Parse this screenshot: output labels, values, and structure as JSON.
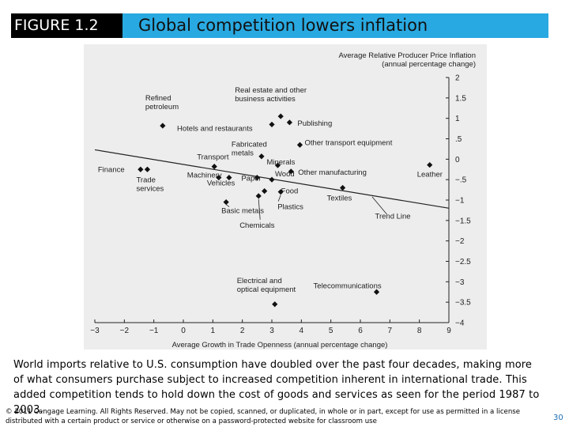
{
  "figure": {
    "label": "FIGURE 1.2",
    "title": "Global competition lowers inflation"
  },
  "chart_data": {
    "type": "scatter",
    "ylabel_lines": [
      "Average Relative Producer Price Inflation",
      "(annual percentage change)"
    ],
    "xlabel": "Average Growth in Trade Openness (annual percentage change)",
    "xlim": [
      -3,
      9
    ],
    "ylim": [
      -4,
      2
    ],
    "x_ticks": [
      "−3",
      "−2",
      "−1",
      "0",
      "1",
      "2",
      "3",
      "4",
      "5",
      "6",
      "7",
      "8",
      "9"
    ],
    "y_ticks": [
      "2",
      "1.5",
      "1",
      ".5",
      "0",
      "−.5",
      "−1",
      "−1.5",
      "−2",
      "−2.5",
      "−3",
      "−3.5",
      "−4"
    ],
    "trend_line": {
      "label": "Trend Line",
      "x": [
        -3,
        9
      ],
      "y": [
        0.23,
        -1.2
      ]
    },
    "points": [
      {
        "name": "Refined petroleum",
        "lines": [
          "Refined",
          "petroleum"
        ],
        "x": -0.7,
        "y": 0.82
      },
      {
        "name": "Hotels and restaurants",
        "lines": [
          "Hotels and restaurants"
        ],
        "x": 3.0,
        "y": 0.85
      },
      {
        "name": "Real estate and other business activities",
        "lines": [
          "Real estate and other",
          "business activities"
        ],
        "x": 3.3,
        "y": 1.05
      },
      {
        "name": "Publishing",
        "lines": [
          "Publishing"
        ],
        "x": 3.6,
        "y": 0.9
      },
      {
        "name": "Other transport equipment",
        "lines": [
          "Other transport equipment"
        ],
        "x": 3.95,
        "y": 0.35
      },
      {
        "name": "Fabricated metals",
        "lines": [
          "Fabricated",
          "metals"
        ],
        "x": 2.65,
        "y": 0.07
      },
      {
        "name": "Minerals",
        "lines": [
          "Minerals"
        ],
        "x": 3.2,
        "y": -0.15
      },
      {
        "name": "Transport",
        "lines": [
          "Transport"
        ],
        "x": 1.05,
        "y": -0.18
      },
      {
        "name": "Finance",
        "lines": [
          "Finance"
        ],
        "x": -1.45,
        "y": -0.25
      },
      {
        "name": "Trade services",
        "lines": [
          "Trade",
          "services"
        ],
        "x": -1.22,
        "y": -0.25
      },
      {
        "name": "Other manufacturing",
        "lines": [
          "Other manufacturing"
        ],
        "x": 3.65,
        "y": -0.3
      },
      {
        "name": "Leather",
        "lines": [
          "Leather"
        ],
        "x": 8.35,
        "y": -0.14
      },
      {
        "name": "Machinery",
        "lines": [
          "Machinery"
        ],
        "x": 1.2,
        "y": -0.45
      },
      {
        "name": "Vehicles",
        "lines": [
          "Vehicles"
        ],
        "x": 1.55,
        "y": -0.45
      },
      {
        "name": "Paper",
        "lines": [
          "Paper"
        ],
        "x": 2.5,
        "y": -0.45
      },
      {
        "name": "Wood",
        "lines": [
          "Wood"
        ],
        "x": 3.0,
        "y": -0.5
      },
      {
        "name": "Food",
        "lines": [
          "Food"
        ],
        "x": 2.75,
        "y": -0.78
      },
      {
        "name": "Textiles",
        "lines": [
          "Textiles"
        ],
        "x": 5.4,
        "y": -0.7
      },
      {
        "name": "Basic metals",
        "lines": [
          "Basic metals"
        ],
        "x": 1.45,
        "y": -1.05
      },
      {
        "name": "Plastics",
        "lines": [
          "Plastics"
        ],
        "x": 3.3,
        "y": -0.8
      },
      {
        "name": "Chemicals",
        "lines": [
          "Chemicals"
        ],
        "x": 2.55,
        "y": -0.9
      },
      {
        "name": "Electrical and optical equipment",
        "lines": [
          "Electrical and",
          "optical equipment"
        ],
        "x": 3.1,
        "y": -3.55
      },
      {
        "name": "Telecommunications",
        "lines": [
          "Telecommunications"
        ],
        "x": 6.55,
        "y": -3.25
      }
    ]
  },
  "caption": "World imports relative to U.S. consumption have doubled over the past four decades, making more of what consumers purchase subject to increased competition inherent in international trade. This added competition tends to hold down the cost of goods and services as seen for the period 1987 to 2003.",
  "footer": {
    "copyright": "© 2011 Cengage Learning. All Rights Reserved. May not be copied, scanned, or duplicated, in whole or in part, except for use as permitted in a license distributed with a certain product or service or otherwise on a password-protected website for classroom use",
    "page_number": "30"
  }
}
